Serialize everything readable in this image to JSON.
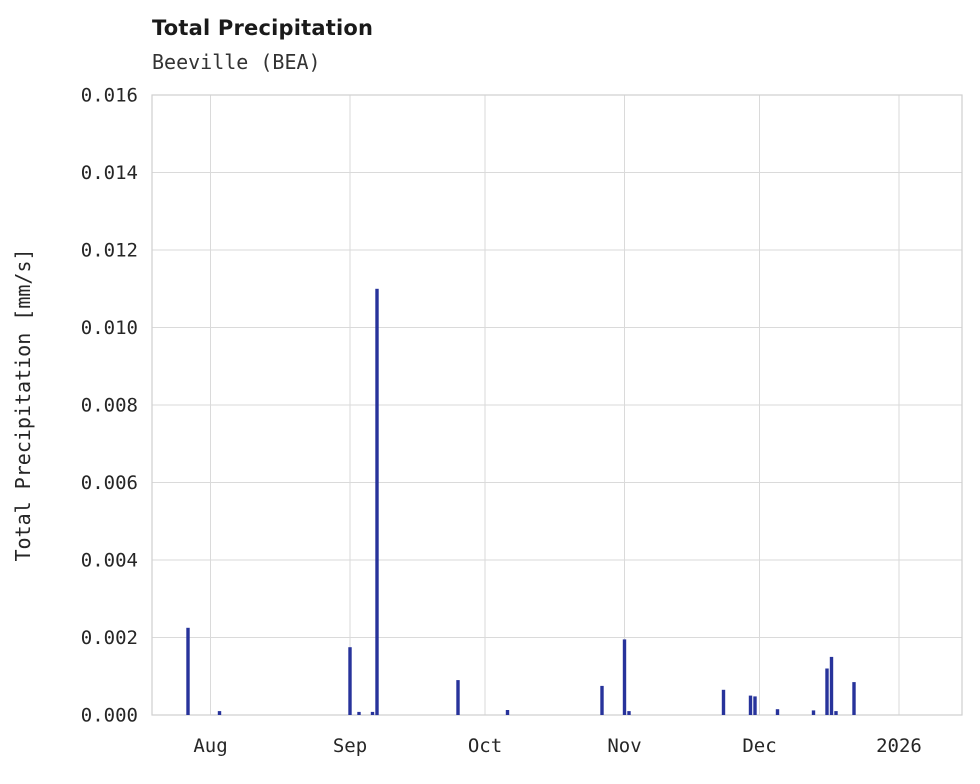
{
  "chart_data": {
    "type": "bar",
    "title": "Total Precipitation",
    "subtitle": "Beeville (BEA)",
    "ylabel": "Total Precipitation [mm/s]",
    "xlabel": "",
    "ylim": [
      0,
      0.016
    ],
    "ytick_step": 0.002,
    "ytick_decimals": 3,
    "grid": true,
    "legend": "none",
    "bar_color": "#27339b",
    "grid_color": "#dadada",
    "border_color": "#cfcfcf",
    "x_domain": [
      "2025-07-19",
      "2026-01-15"
    ],
    "xticks": [
      {
        "date": "2025-08-01",
        "label": "Aug"
      },
      {
        "date": "2025-09-01",
        "label": "Sep"
      },
      {
        "date": "2025-10-01",
        "label": "Oct"
      },
      {
        "date": "2025-11-01",
        "label": "Nov"
      },
      {
        "date": "2025-12-01",
        "label": "Dec"
      },
      {
        "date": "2026-01-01",
        "label": "2026"
      }
    ],
    "points": [
      {
        "date": "2025-07-27",
        "value": 0.00225
      },
      {
        "date": "2025-08-03",
        "value": 0.0001
      },
      {
        "date": "2025-09-01",
        "value": 0.00175
      },
      {
        "date": "2025-09-03",
        "value": 8e-05
      },
      {
        "date": "2025-09-06",
        "value": 8e-05
      },
      {
        "date": "2025-09-07",
        "value": 0.011
      },
      {
        "date": "2025-09-25",
        "value": 0.0009
      },
      {
        "date": "2025-10-06",
        "value": 0.00013
      },
      {
        "date": "2025-10-27",
        "value": 0.00075
      },
      {
        "date": "2025-11-01",
        "value": 0.00195
      },
      {
        "date": "2025-11-02",
        "value": 0.0001
      },
      {
        "date": "2025-11-23",
        "value": 0.00065
      },
      {
        "date": "2025-11-29",
        "value": 0.0005
      },
      {
        "date": "2025-11-30",
        "value": 0.00048
      },
      {
        "date": "2025-12-05",
        "value": 0.00015
      },
      {
        "date": "2025-12-13",
        "value": 0.00012
      },
      {
        "date": "2025-12-16",
        "value": 0.0012
      },
      {
        "date": "2025-12-17",
        "value": 0.0015
      },
      {
        "date": "2025-12-18",
        "value": 0.0001
      },
      {
        "date": "2025-12-22",
        "value": 0.00085
      }
    ]
  }
}
